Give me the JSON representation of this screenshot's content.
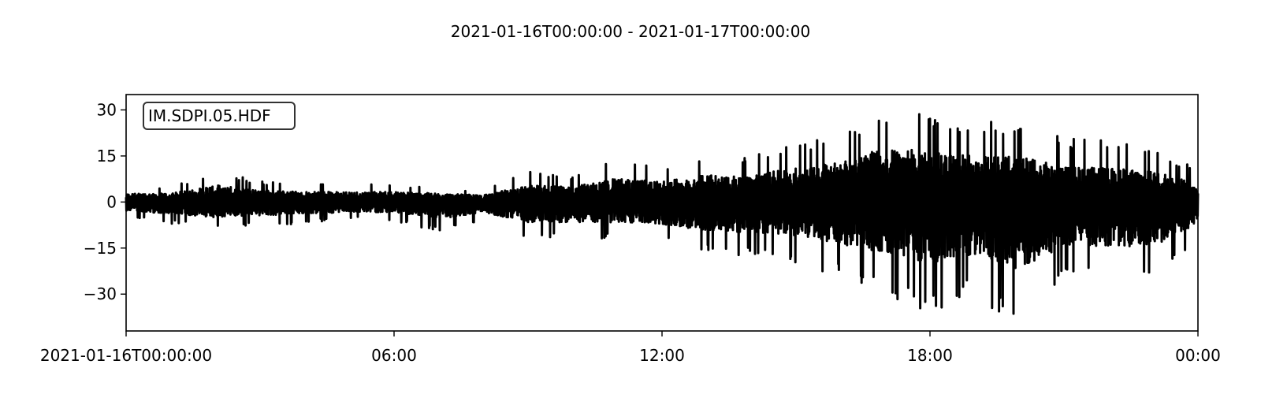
{
  "chart_data": {
    "type": "line",
    "title": "2021-01-16T00:00:00  -  2021-01-17T00:00:00",
    "xlabel": "",
    "ylabel": "",
    "grid": false,
    "legend_placement": "top-left",
    "xlim": [
      "2021-01-16T00:00:00",
      "2021-01-17T00:00:00"
    ],
    "ylim": [
      -42,
      35
    ],
    "x_ticks": [
      {
        "label": "2021-01-16T00:00:00",
        "value": "2021-01-16T00:00:00"
      },
      {
        "label": "06:00",
        "value": "2021-01-16T06:00:00"
      },
      {
        "label": "12:00",
        "value": "2021-01-16T12:00:00"
      },
      {
        "label": "18:00",
        "value": "2021-01-16T18:00:00"
      },
      {
        "label": "00:00",
        "value": "2021-01-17T00:00:00"
      }
    ],
    "y_ticks": [
      {
        "label": "30",
        "value": 30
      },
      {
        "label": "15",
        "value": 15
      },
      {
        "label": "0",
        "value": 0
      },
      {
        "label": "−15",
        "value": -15
      },
      {
        "label": "−30",
        "value": -30
      }
    ],
    "series": [
      {
        "name": "IM.SDPI.05.HDF",
        "color": "#000000",
        "envelope_hourly": [
          {
            "time": "2021-01-16T00:00:00",
            "min": -5,
            "max": 5
          },
          {
            "time": "2021-01-16T01:00:00",
            "min": -7,
            "max": 5
          },
          {
            "time": "2021-01-16T02:00:00",
            "min": -9,
            "max": 10
          },
          {
            "time": "2021-01-16T03:00:00",
            "min": -8,
            "max": 7
          },
          {
            "time": "2021-01-16T04:00:00",
            "min": -7,
            "max": 6
          },
          {
            "time": "2021-01-16T05:00:00",
            "min": -6,
            "max": 6
          },
          {
            "time": "2021-01-16T06:00:00",
            "min": -6,
            "max": 6
          },
          {
            "time": "2021-01-16T07:00:00",
            "min": -10,
            "max": 5
          },
          {
            "time": "2021-01-16T08:00:00",
            "min": -6,
            "max": 4
          },
          {
            "time": "2021-01-16T09:00:00",
            "min": -12,
            "max": 10
          },
          {
            "time": "2021-01-16T10:00:00",
            "min": -12,
            "max": 9
          },
          {
            "time": "2021-01-16T11:00:00",
            "min": -12,
            "max": 14
          },
          {
            "time": "2021-01-16T12:00:00",
            "min": -13,
            "max": 12
          },
          {
            "time": "2021-01-16T13:00:00",
            "min": -17,
            "max": 16
          },
          {
            "time": "2021-01-16T14:00:00",
            "min": -18,
            "max": 16
          },
          {
            "time": "2021-01-16T15:00:00",
            "min": -20,
            "max": 20
          },
          {
            "time": "2021-01-16T16:00:00",
            "min": -25,
            "max": 24
          },
          {
            "time": "2021-01-16T17:00:00",
            "min": -30,
            "max": 32
          },
          {
            "time": "2021-01-16T18:00:00",
            "min": -36,
            "max": 30
          },
          {
            "time": "2021-01-16T19:00:00",
            "min": -31,
            "max": 27
          },
          {
            "time": "2021-01-16T20:00:00",
            "min": -40,
            "max": 27
          },
          {
            "time": "2021-01-16T21:00:00",
            "min": -26,
            "max": 21
          },
          {
            "time": "2021-01-16T22:00:00",
            "min": -26,
            "max": 20
          },
          {
            "time": "2021-01-16T23:00:00",
            "min": -28,
            "max": 18
          },
          {
            "time": "2021-01-17T00:00:00",
            "min": -12,
            "max": 11
          }
        ]
      }
    ]
  }
}
